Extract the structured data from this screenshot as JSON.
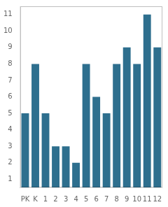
{
  "chart_data": {
    "type": "bar",
    "categories": [
      "PK",
      "K",
      "1",
      "2",
      "3",
      "4",
      "5",
      "6",
      "7",
      "8",
      "9",
      "10",
      "11",
      "12"
    ],
    "values": [
      5,
      8,
      5,
      3,
      3,
      2,
      8,
      6,
      5,
      8,
      9,
      8,
      11,
      9
    ],
    "color": "#2e6f8e",
    "ylim": [
      0.5,
      11.5
    ],
    "yticks": [
      1,
      2,
      3,
      4,
      5,
      6,
      7,
      8,
      9,
      10,
      11
    ],
    "grid": false
  }
}
